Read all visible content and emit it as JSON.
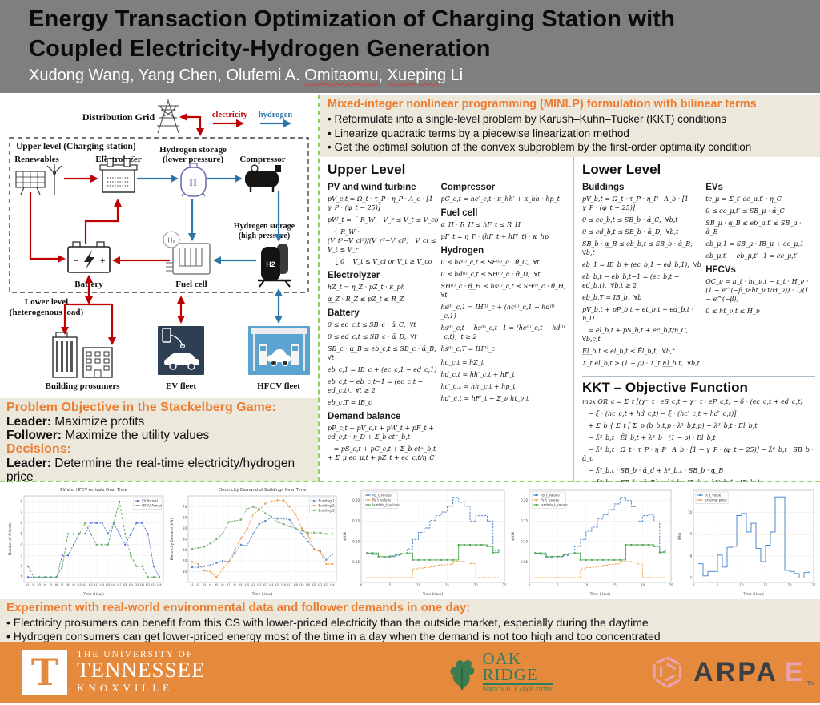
{
  "header": {
    "title_line1": "Energy Transaction Optimization of Charging Station with",
    "title_line2": "Coupled Electricity-Hydrogen Generation",
    "authors_p1": "Xudong Wang, Yang Chen, Olufemi A. ",
    "authors_w1": "Omitaomu",
    "authors_p2": ", ",
    "authors_w2": "Xueping",
    "authors_p3": " Li"
  },
  "diagram": {
    "distribution_grid": "Distribution Grid",
    "legend": {
      "electricity": "electricity",
      "hydrogen": "hydrogen"
    },
    "upper_label": "Upper level (Charging station)",
    "lower_label_1": "Lower level",
    "lower_label_2": "(heterogenous load)",
    "nodes": {
      "renewables": "Renewables",
      "electrolyzer": "Electrolyzer",
      "h_low_1": "Hydrogen storage",
      "h_low_2": "(lower pressure)",
      "compressor": "Compressor",
      "battery": "Battery",
      "fuel_cell": "Fuel cell",
      "h_high_1": "Hydrogen storage",
      "h_high_2": "(high pressure)",
      "buildings": "Building prosumers",
      "ev_fleet": "EV fleet",
      "hfcv_fleet": "HFCV fleet",
      "h2_tank_text": "H2",
      "h_tank_text": "H",
      "fc_circle_text": "H₂"
    },
    "colors": {
      "electricity": "#c00000",
      "hydrogen": "#2e75a8"
    }
  },
  "minlp": {
    "heading": "Mixed-integer nonlinear programming (MINLP) formulation with bilinear terms",
    "bullets": [
      "Reformulate into a single-level problem by Karush–Kuhn–Tucker (KKT) conditions",
      "Linearize quadratic terms by a piecewise linearization method",
      "Get the optimal solution of the convex subproblem by the first-order optimality condition"
    ]
  },
  "stackelberg": {
    "items": [
      {
        "type": "heading",
        "text": "Problem Objective in the Stackelberg Game:"
      },
      {
        "type": "line",
        "bold": "Leader:",
        "text": " Maximize profits"
      },
      {
        "type": "line",
        "bold": "Follower:",
        "text": " Maximize the utility values"
      },
      {
        "type": "heading",
        "text": "Decisions:"
      },
      {
        "type": "line",
        "bold": "Leader:",
        "text": " Determine the real-time electricity/hydrogen price"
      },
      {
        "type": "line",
        "bold": "Follower:",
        "text": " Determine how much to charge/refuel"
      }
    ]
  },
  "equations": {
    "upper": {
      "title": "Upper Level",
      "left_groups": [
        {
          "heading": "PV and wind turbine",
          "lines": [
            "pV_c,t = Ω_t · τ_P · η_P · A_c · [1 − γ_P · (φ_t − 25)]",
            "pW_t = ⎧ R_W    V_r ≤ V_t ≤ V_co",
            "   ⎨ R_W · (V_t³−V_ci³)/(V_r³−V_ci³)   V_ci ≤ V_t ≤ V_r",
            "   ⎩ 0    V_t ≤ V_ci or V_t ≥ V_co"
          ]
        },
        {
          "heading": "Electrolyzer",
          "lines": [
            "hZ_t = η_Z · pZ_t · κ_ph",
            "α̲_Z · R_Z ≤ pZ_t ≤ R_Z"
          ]
        },
        {
          "heading": "Battery",
          "lines": [
            "0 ≤ ec_c,t ≤ SB_c · ᾱ_C,  ∀t",
            "0 ≤ ed_c,t ≤ SB_c · ᾱ_D,  ∀t",
            "SB_c · α̲_B ≤ eb_c,t ≤ SB_c · ᾱ_B,  ∀t",
            "eb_c,1 = IB_c + (ec_c,1 − ed_c,1)",
            "eb_c,t − eb_c,t−1 = (ec_c,t − ed_c,t),  ∀t ≥ 2",
            "eb_c,T = IB_c"
          ]
        },
        {
          "heading": "Demand balance",
          "lines": [
            "pP_c,t + pV_c,t + pW_t + pF_t + ed_c,t · η_D + Σ_b et⁻_b,t",
            "   = pS_c,t + pC_c,t + Σ_b et⁺_b,t + Σ_μ ec_μ,t + pZ_t + ec_c,t/η_C"
          ]
        }
      ],
      "right_groups": [
        {
          "heading": "Compressor",
          "lines": [
            "pC_c,t = hc′_c,t · κ_hh′ + κ_hh · hp_t"
          ]
        },
        {
          "heading": "Fuel cell",
          "lines": [
            "α̲_H · R_H ≤ hF_t ≤ R_H",
            "pF_t = η_F · (hF_t + hF′_t) · κ_hp"
          ]
        },
        {
          "heading": "Hydrogen",
          "lines": [
            "0 ≤ hc⁽ˡ⁾_c,t ≤ SH⁽ˡ⁾_c · θ̄_C,  ∀t",
            "0 ≤ hd⁽ˡ⁾_c,t ≤ SH⁽ˡ⁾_c · θ̄_D,  ∀t",
            "SH⁽ˡ⁾_c · θ̲_H ≤ hs⁽ˡ⁾_c,t ≤ SH⁽ˡ⁾_c · θ̄_H,  ∀t",
            "hs⁽ˡ⁾_c,1 = IH⁽ˡ⁾_c + (hc⁽ˡ⁾_c,1 − hd⁽ˡ⁾_c,1)",
            "hs⁽ˡ⁾_c,t − hs⁽ˡ⁾_c,t−1 = (hc⁽ˡ⁾_c,t − hd⁽ˡ⁾_c,t),  t ≥ 2",
            "hs⁽ˡ⁾_c,T = IH⁽ˡ⁾_c"
          ]
        },
        {
          "heading": "",
          "lines": [
            "hc_c,t = hZ_t",
            "hd_c,t = hh′_c,t + hF_t",
            "hc′_c,t = hh′_c,t + hp_t",
            "hd′_c,t = hF′_t + Σ_ν ht_ν,t"
          ]
        }
      ]
    },
    "lower": {
      "title": "Lower Level",
      "left_groups": [
        {
          "heading": "Buildings",
          "lines": [
            "pV_b,t = Ω_t · τ_P · η_P · A_b · [1 − γ_P · (φ_t − 25)]",
            "0 ≤ ec_b,t ≤ SB_b · ᾱ_C,  ∀b,t",
            "0 ≤ ed_b,t ≤ SB_b · ᾱ_D,  ∀b,t",
            "SB_b · α̲_B ≤ eb_b,t ≤ SB_b · ᾱ_B,  ∀b,t",
            "eb_1 = IB_b + (ec_b,1 − ed_b,1),  ∀b",
            "eb_b,t − eb_b,t−1 = (ec_b,t − ed_b,t),  ∀b,t ≥ 2",
            "eb_b,T = IB_b,  ∀b",
            "pV_b,t + pP_b,t + et_b,t + ed_b,t · η_D",
            "   = el_b,t + pS_b,t + ec_b,t/η_C,  ∀b,c,t",
            "E̲l̲_b,t ≤ el_b,t ≤ Ēl_b,t,  ∀b,t",
            "Σ_t el_b,t ≥ (1 − ρ) · Σ_t E̲l̲_b,t,  ∀b,t"
          ]
        }
      ],
      "right_groups": [
        {
          "heading": "EVs",
          "lines": [
            "te_μ = Σ_t′ ec_μ,t′ · η_C",
            "0 ≤ ec_μ,t′ ≤ SB_μ · ᾱ_C",
            "SB_μ · α̲_B ≤ eb_μ,t′ ≤ SB_μ · ᾱ_B",
            "eb_μ,1 = SB_μ · IB_μ + ec_μ,1",
            "eb_μ,t′ − eb_μ,t′−1 = ec_μ,t′"
          ]
        },
        {
          "heading": "HFCVs",
          "lines": [
            "OC_ν = π_t · ht_ν,t − ε_t · H_ν · (1 − e^(−β_ν·ht_ν,t/H_ν)) · 1/(1 − e^(−β))",
            "0 ≤ ht_ν,t ≤ H_ν"
          ]
        }
      ]
    },
    "kkt": {
      "title": "KKT – Objective Function",
      "lines": [
        "max OR_c = Σ_t [(χ⁻_t · eS_c,t − χ⁺_t · eP_c,t) − δ · (ec_c,t + ed_c,t)",
        "   − ξ · (hc_c,t + hd_c,t) − ξ · (hc′_c,t + hd′_c,t)]",
        "   + Σ_b { Σ_t [ Σ_p (b_b,t,p · λ¹_b,t,p) + λ³_b,t · E̲l̲_b,t",
        "   − λ̄²_b,t · Ēl_b,t + λ⁴_b · (1 − ρ) · E̲l̲_b,t",
        "   − λ̄⁵_b,t · Ω_t · τ_P · η_P · A_b · [1 − γ_P · (φ_t − 25)] − λ̄⁶_b,t · SB_b · ᾱ_c",
        "   − λ̄⁷_b,t · SB_b · ᾱ_d + λ⁸_b,t · SB_b · α̲_B",
        "   − λ̄⁹_b,t · SB_b · ᾱ_B] + λ⁹_b · IB_b + λ¹⁰_b,1 · IB_b }",
        "   − Σ_b Σ_t [ζ · (el_b,t − EL_b,t)² + δ · (ec_b,t + ed_b,t) + (χ⁺_t · pP_b,t − χ⁻_t · pS_b,t)]"
      ]
    }
  },
  "experiment": {
    "heading": "Experiment with real-world environmental data and follower demands in one day:",
    "bullets": [
      "Electricity prosumers can benefit from this CS with lower-priced electricity than the outside market, especially during the daytime",
      "Hydrogen consumers can get lower-priced energy most of the time in a day when the demand is not too high and too concentrated"
    ]
  },
  "footer": {
    "ut": {
      "t": "T",
      "line1": "THE UNIVERSITY OF",
      "line2": "TENNESSEE",
      "line3": "KNOXVILLE"
    },
    "ornl": {
      "line1": "OAK",
      "line2": "RIDGE",
      "line3": "National Laboratory"
    },
    "arpae": {
      "arpa": "ARPA",
      "e": "E",
      "tm": "TM"
    }
  },
  "chart_data": [
    {
      "type": "line",
      "title": "EV and HFCV Arrivals Over Time",
      "xlabel": "Time (Hour)",
      "ylabel": "Number of Arrivals",
      "categories": [
        "t1",
        "t2",
        "t3",
        "t4",
        "t5",
        "t6",
        "t7",
        "t8",
        "t9",
        "t10",
        "t11",
        "t12",
        "t13",
        "t14",
        "t15",
        "t16",
        "t17",
        "t18",
        "t19",
        "t20",
        "t21",
        "t22",
        "t23",
        "t24"
      ],
      "ylim": [
        0.5,
        8.5
      ],
      "yticks": [
        1,
        2,
        3,
        4,
        5,
        6,
        7,
        8
      ],
      "legend_pos": "top-right",
      "grid": true,
      "series": [
        {
          "name": "EV Arrival",
          "color": "#4a6fd4",
          "dash": "2,1.2",
          "marker": true,
          "values": [
            1,
            1,
            1,
            1,
            1,
            1,
            3,
            3,
            4,
            5,
            5,
            6,
            6,
            6,
            5,
            6,
            5,
            4,
            5,
            6,
            6,
            5,
            2,
            1
          ]
        },
        {
          "name": "HFCV Arrival",
          "color": "#55a855",
          "dash": "3,2",
          "marker": true,
          "values": [
            2,
            1,
            1,
            1,
            1,
            1,
            2,
            5,
            5,
            5,
            6,
            5,
            4,
            4,
            4,
            6,
            8,
            5,
            3,
            2,
            2,
            1,
            1,
            1
          ]
        }
      ]
    },
    {
      "type": "line",
      "title": "Electricity Demand of Buildings Over Time",
      "xlabel": "Time (Hour)",
      "ylabel": "Electricity Demand (kW)",
      "categories": [
        "t1",
        "t2",
        "t3",
        "t4",
        "t5",
        "t6",
        "t7",
        "t8",
        "t9",
        "t10",
        "t11",
        "t12",
        "t13",
        "t14",
        "t15",
        "t16",
        "t17",
        "t18",
        "t19",
        "t20",
        "t21",
        "t22",
        "t23",
        "t24"
      ],
      "ylim": [
        0,
        80
      ],
      "yticks": [
        10,
        20,
        30,
        40,
        50,
        60,
        70
      ],
      "legend_pos": "top-right",
      "grid": true,
      "series": [
        {
          "name": "Building 1",
          "color": "#5b8ac5",
          "dash": "2,1.2",
          "marker": true,
          "values": [
            14,
            14,
            15,
            16,
            18,
            20,
            19,
            27,
            35,
            34,
            45,
            54,
            57,
            60,
            59,
            59,
            58,
            50,
            45,
            38,
            31,
            29,
            21,
            26
          ]
        },
        {
          "name": "Building 2",
          "color": "#f0953f",
          "dash": "2,1.2",
          "marker": true,
          "values": [
            19,
            17,
            11,
            10,
            5,
            12,
            19,
            30,
            41,
            49,
            63,
            67,
            73,
            75,
            76,
            76,
            70,
            63,
            50,
            44,
            31,
            28,
            17,
            17
          ]
        },
        {
          "name": "Building 3",
          "color": "#6aaa64",
          "dash": "2,1.2",
          "marker": true,
          "values": [
            31,
            32,
            33,
            36,
            40,
            45,
            56,
            57,
            58,
            68,
            70,
            68,
            64,
            61,
            56,
            54,
            52,
            50,
            48,
            46,
            46,
            46,
            45,
            45
          ]
        }
      ]
    },
    {
      "type": "step",
      "title": "",
      "xlabel": "Time (Hour)",
      "ylabel": "$/kW",
      "xlim": [
        0,
        25
      ],
      "xticks": [
        0,
        5,
        10,
        15,
        20,
        25
      ],
      "ylim": [
        0,
        0.225
      ],
      "yticks": [
        0.05,
        0.1,
        0.15,
        0.2
      ],
      "legend_pos": "top-left",
      "grid": true,
      "series": [
        {
          "name": "Pp_t_values",
          "color": "#3d7ec9",
          "dash": "2.5,1.5",
          "marker": false,
          "values": [
            0.071,
            0.068,
            0.06,
            0.062,
            0.065,
            0.066,
            0.07,
            0.082,
            0.105,
            0.122,
            0.133,
            0.152,
            0.163,
            0.172,
            0.186,
            0.208,
            0.196,
            0.186,
            0.15,
            0.163,
            0.163,
            0.15,
            0.078,
            0.08
          ]
        },
        {
          "name": "Ps_t_values",
          "color": "#f0a04b",
          "dash": "2.5,1.5",
          "marker": false,
          "values": [
            0.012,
            0.012,
            0.012,
            0.012,
            0.012,
            0.012,
            0.012,
            0.012,
            0.033,
            0.035,
            0.036,
            0.038,
            0.042,
            0.043,
            0.044,
            0.052,
            0.052,
            0.05,
            0.046,
            0.012,
            0.012,
            0.012,
            0.012,
            0.012
          ]
        },
        {
          "name": "lambda_t_values",
          "color": "#4ca64c",
          "marker": true,
          "values": [
            0.072,
            0.072,
            0.063,
            0.063,
            0.063,
            0.068,
            0.07,
            0.072,
            0.055,
            0.055,
            0.055,
            0.055,
            0.055,
            0.055,
            0.055,
            0.055,
            0.092,
            0.092,
            0.092,
            0.092,
            0.092,
            0.088,
            0.073,
            0.079
          ]
        }
      ]
    },
    {
      "type": "step",
      "title": "",
      "xlabel": "Time (Hour)",
      "ylabel": "$/kW",
      "xlim": [
        0,
        25
      ],
      "xticks": [
        0,
        5,
        10,
        15,
        20,
        25
      ],
      "ylim": [
        0,
        0.225
      ],
      "yticks": [
        0.05,
        0.1,
        0.15,
        0.2
      ],
      "legend_pos": "top-left",
      "grid": true,
      "series": [
        {
          "name": "Pp_t_values",
          "color": "#3d7ec9",
          "dash": "2.5,1.5",
          "marker": false,
          "values": [
            0.071,
            0.068,
            0.061,
            0.06,
            0.064,
            0.066,
            0.07,
            0.088,
            0.105,
            0.125,
            0.135,
            0.155,
            0.165,
            0.178,
            0.192,
            0.208,
            0.2,
            0.185,
            0.15,
            0.163,
            0.165,
            0.148,
            0.075,
            0.08
          ]
        },
        {
          "name": "Ps_t_values",
          "color": "#f0a04b",
          "dash": "2.5,1.5",
          "marker": false,
          "values": [
            0.012,
            0.012,
            0.012,
            0.012,
            0.012,
            0.012,
            0.012,
            0.012,
            0.033,
            0.036,
            0.037,
            0.039,
            0.042,
            0.044,
            0.045,
            0.052,
            0.051,
            0.049,
            0.045,
            0.012,
            0.012,
            0.012,
            0.012,
            0.012
          ]
        },
        {
          "name": "lambda_t_values",
          "color": "#4ca64c",
          "marker": true,
          "values": [
            0.072,
            0.072,
            0.063,
            0.063,
            0.063,
            0.068,
            0.07,
            0.072,
            0.055,
            0.055,
            0.055,
            0.055,
            0.055,
            0.055,
            0.055,
            0.055,
            0.092,
            0.092,
            0.092,
            0.092,
            0.092,
            0.088,
            0.073,
            0.079
          ]
        }
      ]
    },
    {
      "type": "step",
      "title": "",
      "xlabel": "Time (Hour)",
      "ylabel": "$/kg",
      "xlim": [
        0,
        25
      ],
      "xticks": [
        0,
        5,
        10,
        15,
        20,
        25
      ],
      "ylim": [
        6.8,
        11
      ],
      "yticks": [
        7,
        8,
        9,
        10
      ],
      "legend_pos": "top-left",
      "grid": true,
      "series": [
        {
          "name": "pi_t_value",
          "color": "#3d7ec9",
          "marker": false,
          "values": [
            7.65,
            7.1,
            7.3,
            7.3,
            8.05,
            7.5,
            8.4,
            8.45,
            9.85,
            9.95,
            9.1,
            9.5,
            8.35,
            7.75,
            8.5,
            9.1,
            10.7,
            10.7,
            7.35,
            7.3,
            7.2,
            7.0,
            7.25,
            7.3
          ]
        },
        {
          "name": "external price",
          "color": "#f0a04b",
          "dash": "2.5,1.5",
          "marker": false,
          "constant": 9.0
        }
      ]
    }
  ]
}
